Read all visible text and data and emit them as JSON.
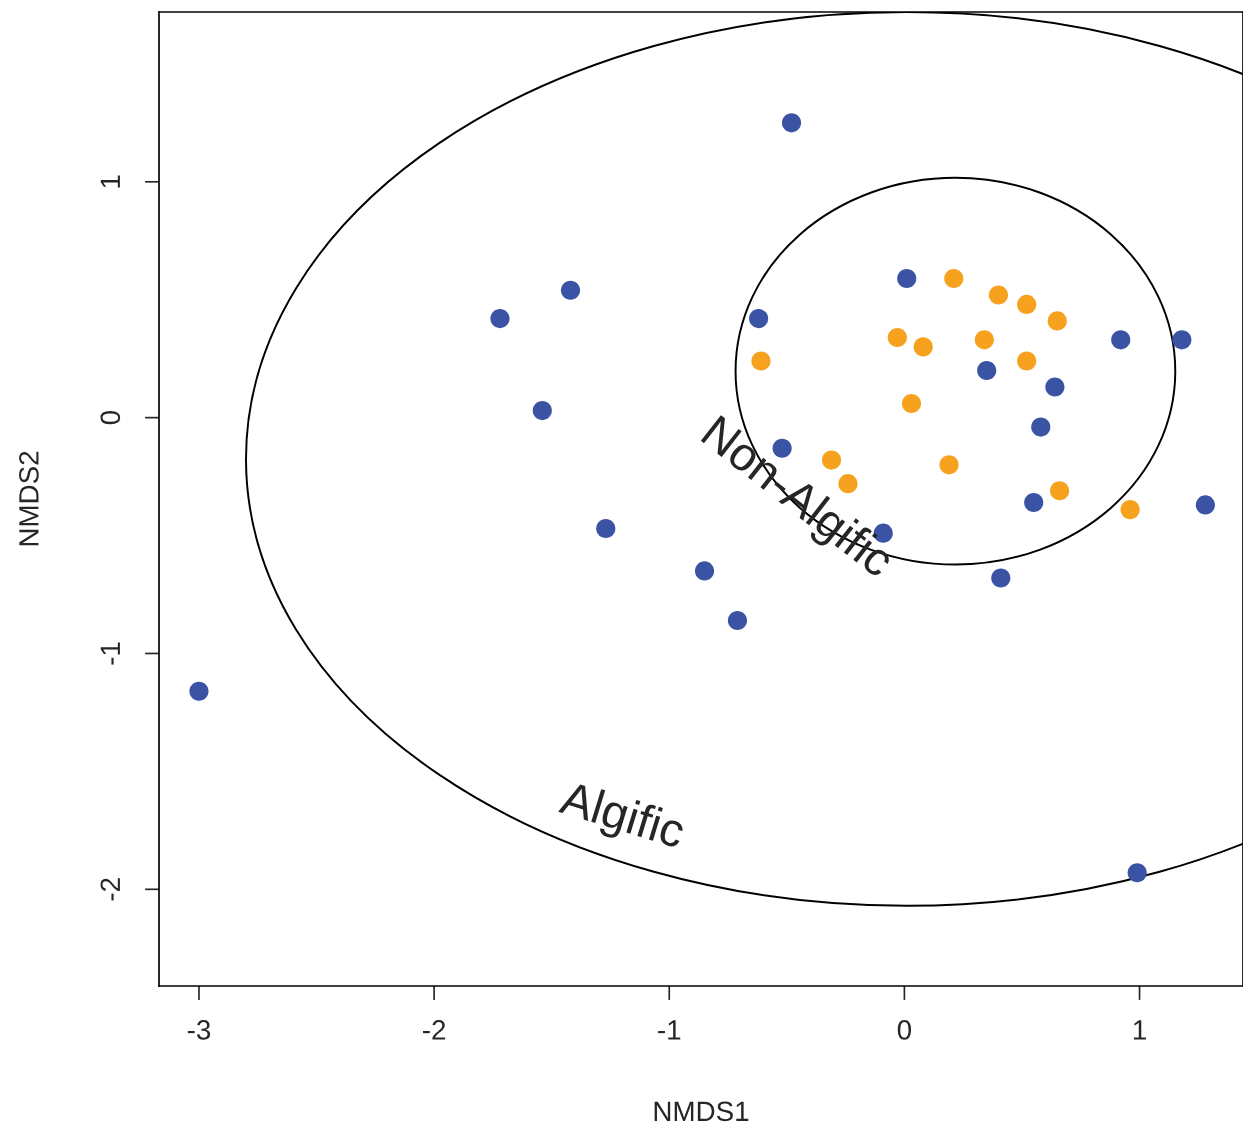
{
  "chart_data": {
    "type": "scatter",
    "xlabel": "NMDS1",
    "ylabel": "NMDS2",
    "xlim": [
      -3.17,
      1.44
    ],
    "ylim": [
      -2.41,
      1.72
    ],
    "xticks": [
      -3,
      -2,
      -1,
      0,
      1
    ],
    "yticks": [
      -2,
      -1,
      0,
      1
    ],
    "grid": false,
    "legend": false,
    "marker": "circle",
    "series": [
      {
        "color": "#3a53a4",
        "x": [
          -0.48,
          -1.42,
          -1.72,
          -1.54,
          -1.27,
          -0.85,
          -0.71,
          -3.0,
          0.99,
          0.01,
          -0.62,
          0.35,
          0.64,
          0.58,
          -0.52,
          0.55,
          -0.09,
          0.41,
          0.92,
          1.18,
          1.28
        ],
        "values": [
          1.25,
          0.54,
          0.42,
          0.03,
          -0.47,
          -0.65,
          -0.86,
          -1.16,
          -1.93,
          0.59,
          0.42,
          0.2,
          0.13,
          -0.04,
          -0.13,
          -0.36,
          -0.49,
          -0.68,
          0.33,
          0.33,
          -0.37
        ]
      },
      {
        "color": "#f6a21e",
        "x": [
          0.21,
          0.4,
          0.52,
          0.65,
          -0.03,
          0.08,
          0.34,
          -0.61,
          0.52,
          0.03,
          -0.31,
          -0.24,
          0.19,
          0.66,
          0.96
        ],
        "values": [
          0.59,
          0.52,
          0.48,
          0.41,
          0.34,
          0.3,
          0.33,
          0.24,
          0.24,
          0.06,
          -0.18,
          -0.28,
          -0.2,
          -0.31,
          -0.39
        ]
      }
    ],
    "annotations": [
      "Non-Algific",
      "Algific"
    ]
  }
}
